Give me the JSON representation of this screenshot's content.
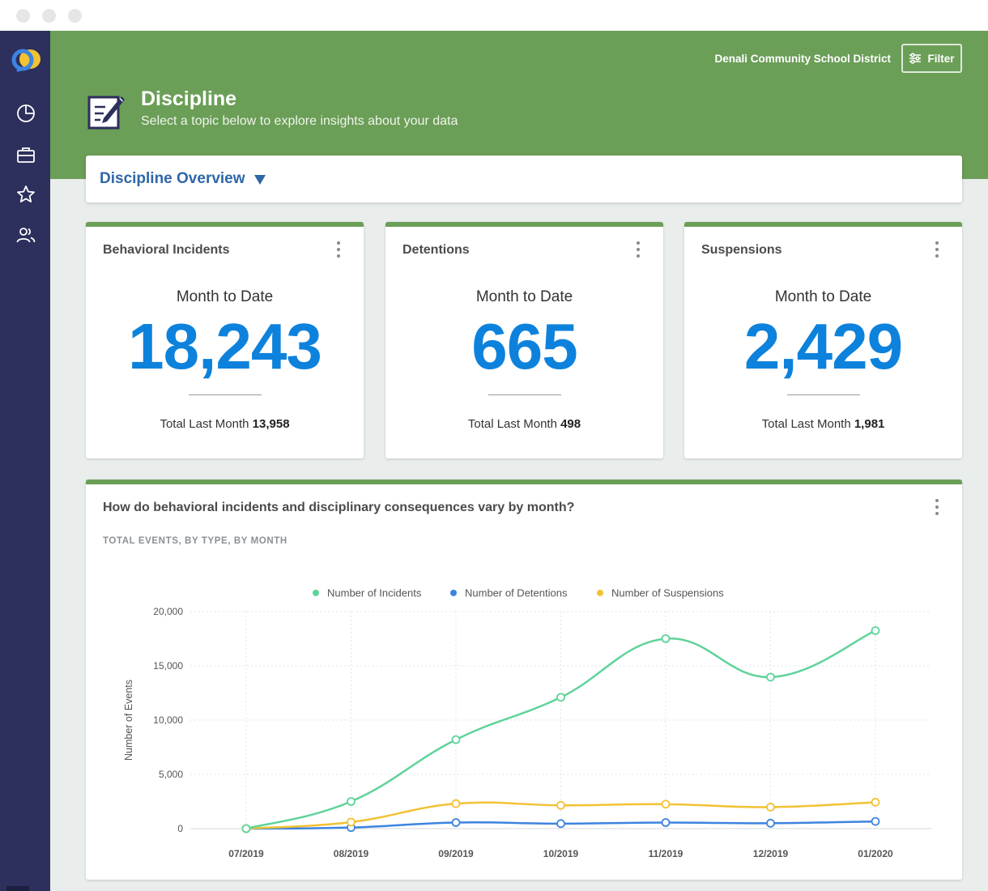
{
  "window": {
    "controls": [
      "close",
      "minimize",
      "maximize"
    ]
  },
  "sidebar": {
    "items": [
      {
        "icon": "logo-icon"
      },
      {
        "icon": "pie-chart-icon"
      },
      {
        "icon": "briefcase-icon"
      },
      {
        "icon": "star-icon"
      },
      {
        "icon": "users-icon"
      }
    ]
  },
  "header": {
    "district": "Denali Community School District",
    "filter_label": "Filter",
    "title": "Discipline",
    "subtitle": "Select a topic below to explore insights about your data"
  },
  "overview": {
    "label": "Discipline Overview"
  },
  "cards": [
    {
      "title": "Behavioral Incidents",
      "period": "Month to Date",
      "value": "18,243",
      "footer_label": "Total Last Month",
      "footer_value": "13,958"
    },
    {
      "title": "Detentions",
      "period": "Month to Date",
      "value": "665",
      "footer_label": "Total Last Month",
      "footer_value": "498"
    },
    {
      "title": "Suspensions",
      "period": "Month to Date",
      "value": "2,429",
      "footer_label": "Total Last Month",
      "footer_value": "1,981"
    }
  ],
  "chart_panel": {
    "title": "How do behavioral incidents and disciplinary consequences vary by month?",
    "subtitle": "TOTAL EVENTS, BY TYPE, BY MONTH"
  },
  "colors": {
    "banner": "#6b9e57",
    "sidebar": "#2d2f5c",
    "accent_blue": "#0d82dc",
    "link_blue": "#2f67a8"
  },
  "chart_data": {
    "type": "line",
    "x": [
      "07/2019",
      "08/2019",
      "09/2019",
      "10/2019",
      "11/2019",
      "12/2019",
      "01/2020"
    ],
    "series": [
      {
        "name": "Number of Incidents",
        "color": "#5fd39a",
        "values": [
          0,
          2500,
          8200,
          12100,
          17500,
          13958,
          18243
        ]
      },
      {
        "name": "Number of Detentions",
        "color": "#3d84e0",
        "values": [
          0,
          100,
          560,
          460,
          560,
          498,
          665
        ]
      },
      {
        "name": "Number of Suspensions",
        "color": "#f2c233",
        "values": [
          0,
          600,
          2300,
          2150,
          2250,
          1981,
          2429
        ]
      }
    ],
    "ylabel": "Number of Events",
    "xlabel": "",
    "ylim": [
      0,
      20000
    ],
    "yticks": [
      0,
      5000,
      10000,
      15000,
      20000
    ],
    "ytick_labels": [
      "0",
      "5,000",
      "10,000",
      "15,000",
      "20,000"
    ],
    "grid": true,
    "legend": "top-center"
  }
}
